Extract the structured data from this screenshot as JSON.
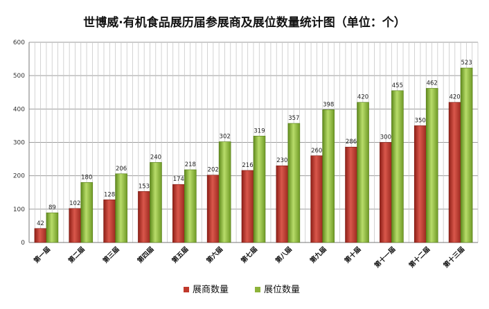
{
  "chart_data": {
    "type": "bar",
    "title": "世博威·有机食品展历届参展商及展位数量统计图（单位：个）",
    "categories": [
      "第一届",
      "第二届",
      "第三届",
      "第四届",
      "第五届",
      "第六届",
      "第七届",
      "第八届",
      "第九届",
      "第十届",
      "第十一届",
      "第十二届",
      "第十三届"
    ],
    "series": [
      {
        "name": "展商数量",
        "color": "#c0392b",
        "values": [
          42,
          102,
          128,
          153,
          174,
          202,
          216,
          230,
          260,
          286,
          300,
          350,
          420
        ]
      },
      {
        "name": "展位数量",
        "color": "#8db33a",
        "values": [
          89,
          180,
          206,
          240,
          218,
          302,
          319,
          357,
          398,
          420,
          455,
          462,
          523
        ]
      }
    ],
    "yticks": [
      0,
      100,
      200,
      300,
      400,
      500,
      600
    ],
    "ylim": [
      0,
      600
    ],
    "grid": true,
    "legend_position": "bottom"
  }
}
